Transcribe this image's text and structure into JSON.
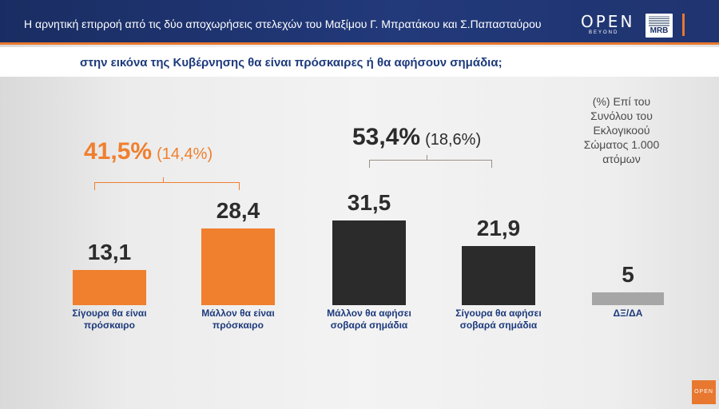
{
  "header": {
    "headline": "Η αρνητική επιρροή από τις δύο αποχωρήσεις στελεχών του Μαξίμου Γ. Μπρατάκου και Σ.Παπασταύρου",
    "logo_open": "OPEN",
    "logo_open_sub": "BEYOND",
    "logo_mrb": "MRB"
  },
  "question": "στην εικόνα της Κυβέρνησης θα είναι πρόσκαιρες ή θα αφήσουν σημάδια;",
  "note_lines": [
    "(%) Επί του",
    "Συνόλου του",
    "Εκλογικοού",
    "Σώματος 1.000",
    "ατόμων"
  ],
  "groups": [
    {
      "main": "41,5%",
      "sub": "(14,4%)",
      "color": "#f07f2e"
    },
    {
      "main": "53,4%",
      "sub": "(18,6%)",
      "color": "#2b2b2b"
    }
  ],
  "corner_logo": "OPEN",
  "chart_data": {
    "type": "bar",
    "categories": [
      [
        "Σίγουρα θα είναι",
        "πρόσκαιρο"
      ],
      [
        "Μάλλον θα είναι",
        "πρόσκαιρο"
      ],
      [
        "Μάλλον θα αφήσει",
        "σοβαρά σημάδια"
      ],
      [
        "Σίγουρα θα αφήσει",
        "σοβαρά σημάδια"
      ],
      [
        "ΔΞ/ΔΑ"
      ]
    ],
    "values": [
      13.1,
      28.4,
      31.5,
      21.9,
      5
    ],
    "value_labels": [
      "13,1",
      "28,4",
      "31,5",
      "21,9",
      "5"
    ],
    "colors": [
      "#f07f2e",
      "#f07f2e",
      "#2b2b2b",
      "#2b2b2b",
      "#a6a6a6"
    ],
    "ylim": [
      0,
      31.5
    ],
    "grid": false,
    "title": "",
    "xlabel": "",
    "ylabel": ""
  }
}
